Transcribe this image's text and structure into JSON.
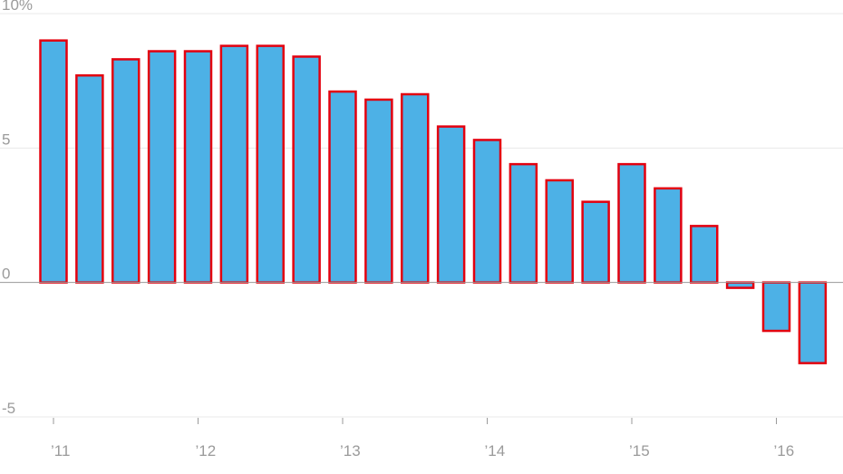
{
  "chart_data": {
    "type": "bar",
    "title": "",
    "xlabel": "",
    "ylabel": "",
    "y_unit_suffix": "%",
    "ylim": [
      -5,
      10
    ],
    "y_ticks": [
      {
        "value": 10,
        "label": "10%"
      },
      {
        "value": 5,
        "label": "5"
      },
      {
        "value": 0,
        "label": "0"
      },
      {
        "value": -5,
        "label": "-5"
      }
    ],
    "x_ticks": [
      {
        "position": 2011.0,
        "label": "’11"
      },
      {
        "position": 2012.0,
        "label": "’12"
      },
      {
        "position": 2013.0,
        "label": "’13"
      },
      {
        "position": 2014.0,
        "label": "’14"
      },
      {
        "position": 2015.0,
        "label": "’15"
      },
      {
        "position": 2016.0,
        "label": "’16"
      }
    ],
    "xlim": [
      2010.9,
      2016.5
    ],
    "grid": true,
    "colors": {
      "bar_fill": "#4db1e6",
      "bar_stroke": "#e3000f"
    },
    "bars": [
      {
        "period": "2011 Q1",
        "x": 2011.0,
        "value": 9.0
      },
      {
        "period": "2011 Q2",
        "x": 2011.25,
        "value": 7.7
      },
      {
        "period": "2011 Q3",
        "x": 2011.5,
        "value": 8.3
      },
      {
        "period": "2011 Q4",
        "x": 2011.75,
        "value": 8.6
      },
      {
        "period": "2012 Q1",
        "x": 2012.0,
        "value": 8.6
      },
      {
        "period": "2012 Q2",
        "x": 2012.25,
        "value": 8.8
      },
      {
        "period": "2012 Q3",
        "x": 2012.5,
        "value": 8.8
      },
      {
        "period": "2012 Q4",
        "x": 2012.75,
        "value": 8.4
      },
      {
        "period": "2013 Q1",
        "x": 2013.0,
        "value": 7.1
      },
      {
        "period": "2013 Q2",
        "x": 2013.25,
        "value": 6.8
      },
      {
        "period": "2013 Q3",
        "x": 2013.5,
        "value": 7.0
      },
      {
        "period": "2013 Q4",
        "x": 2013.75,
        "value": 5.8
      },
      {
        "period": "2014 Q1",
        "x": 2014.0,
        "value": 5.3
      },
      {
        "period": "2014 Q2",
        "x": 2014.25,
        "value": 4.4
      },
      {
        "period": "2014 Q3",
        "x": 2014.5,
        "value": 3.8
      },
      {
        "period": "2014 Q4",
        "x": 2014.75,
        "value": 3.0
      },
      {
        "period": "2015 Q1",
        "x": 2015.0,
        "value": 4.4
      },
      {
        "period": "2015 Q2",
        "x": 2015.25,
        "value": 3.5
      },
      {
        "period": "2015 Q3",
        "x": 2015.5,
        "value": 2.1
      },
      {
        "period": "2015 Q4",
        "x": 2015.75,
        "value": -0.2
      },
      {
        "period": "2016 Q1",
        "x": 2016.0,
        "value": -1.8
      },
      {
        "period": "2016 Q2",
        "x": 2016.25,
        "value": -3.0
      }
    ]
  }
}
